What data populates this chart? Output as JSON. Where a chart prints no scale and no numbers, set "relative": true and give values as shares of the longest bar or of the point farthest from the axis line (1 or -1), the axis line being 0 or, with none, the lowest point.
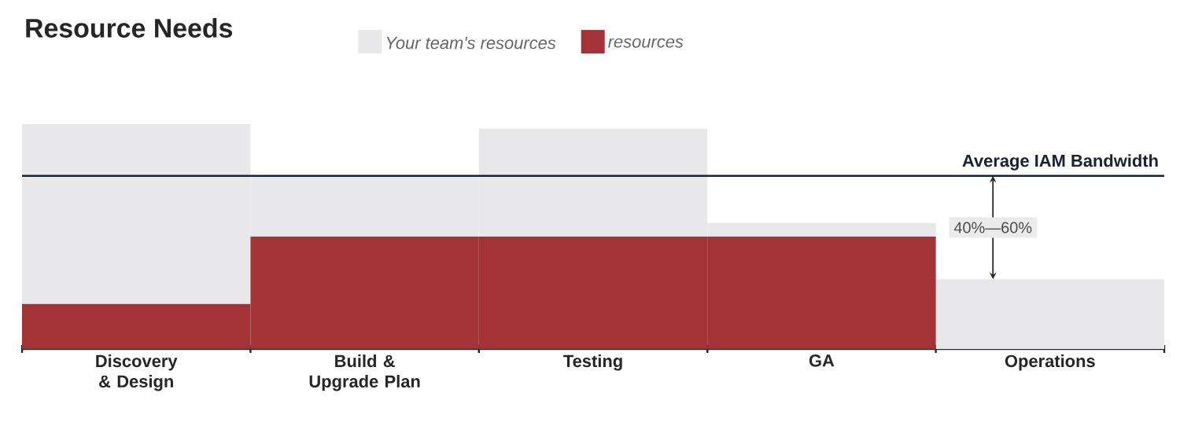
{
  "chart_data": {
    "type": "bar",
    "title": "Resource Needs",
    "relative": true,
    "legend": "top",
    "stacked": true,
    "categories": [
      "Discovery & Design",
      "Build & Upgrade Plan",
      "Testing",
      "GA",
      "Operations"
    ],
    "series": [
      {
        "name": "resources",
        "color": "#a33336",
        "values": [
          0.2,
          0.5,
          0.5,
          0.5,
          0
        ]
      },
      {
        "name": "Your team's resources",
        "color": "#e8e8eb",
        "values": [
          0.8,
          0.27,
          0.48,
          0.06,
          0.31
        ]
      }
    ],
    "ref_lines": [
      {
        "axis": "y",
        "value": 0.77,
        "label": "Average IAM Bandwidth",
        "color": "#1a2233"
      }
    ],
    "annotations": [
      "40%—60%"
    ]
  }
}
